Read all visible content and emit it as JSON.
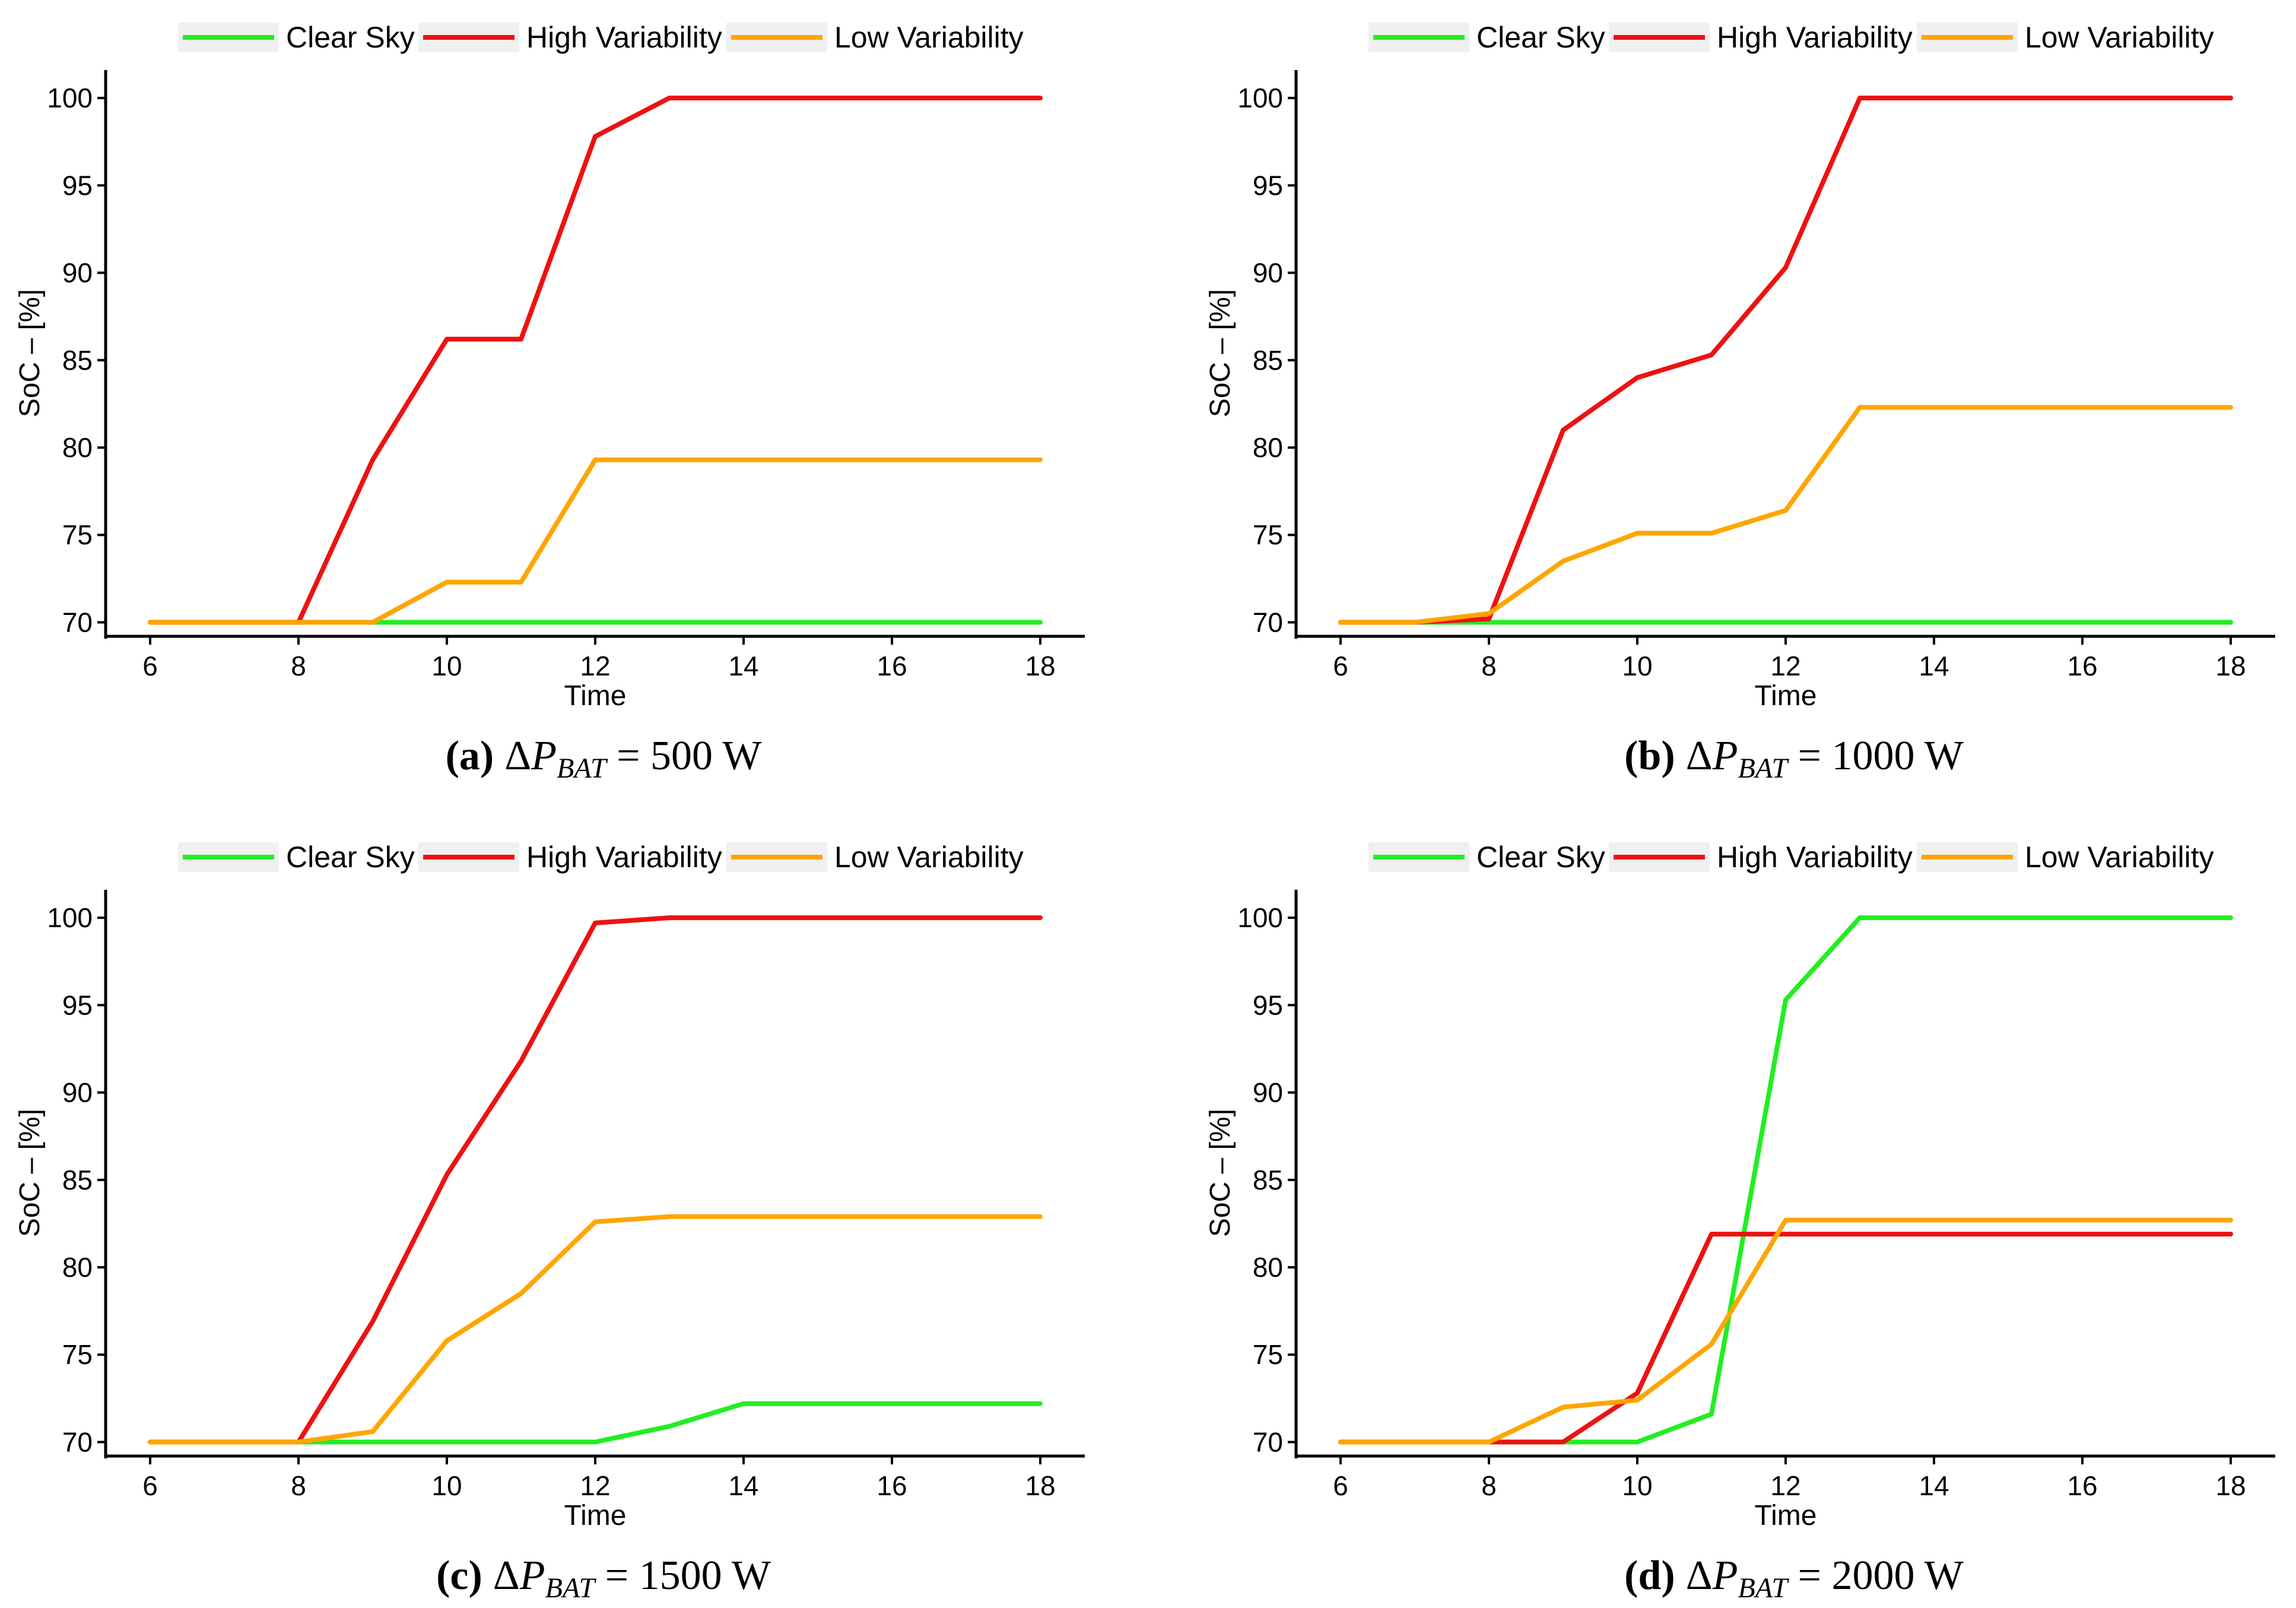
{
  "legend_items": [
    {
      "name": "Clear Sky",
      "color": "#22ee22"
    },
    {
      "name": "High Variability",
      "color": "#ee1111"
    },
    {
      "name": "Low Variability",
      "color": "#ffa500"
    }
  ],
  "legend_swatch_bg": "#f0f0f0",
  "chart_data": [
    {
      "type": "line",
      "xlabel": "Time",
      "ylabel": "SoC – [%]",
      "xlim": [
        5.4,
        18.6
      ],
      "ylim": [
        69.2,
        101.6
      ],
      "xticks": [
        6,
        8,
        10,
        12,
        14,
        16,
        18
      ],
      "yticks": [
        70,
        75,
        80,
        85,
        90,
        95,
        100
      ],
      "grid": false,
      "legend": "top",
      "caption": {
        "label": "(a)",
        "delta": "Δ",
        "var": "P",
        "sub": "BAT",
        "rest": " = 500 W"
      },
      "x": [
        6,
        7,
        8,
        9,
        10,
        11,
        12,
        13,
        14,
        15,
        16,
        17,
        18
      ],
      "series": [
        {
          "name": "Clear Sky",
          "values": [
            70,
            70,
            70,
            70,
            70,
            70,
            70,
            70,
            70,
            70,
            70,
            70,
            70
          ]
        },
        {
          "name": "High Variability",
          "values": [
            70,
            70,
            70,
            79.3,
            86.2,
            86.2,
            97.8,
            100,
            100,
            100,
            100,
            100,
            100
          ]
        },
        {
          "name": "Low Variability",
          "values": [
            70,
            70,
            70,
            70,
            72.3,
            72.3,
            79.3,
            79.3,
            79.3,
            79.3,
            79.3,
            79.3,
            79.3
          ]
        }
      ]
    },
    {
      "type": "line",
      "xlabel": "Time",
      "ylabel": "SoC – [%]",
      "xlim": [
        5.4,
        18.6
      ],
      "ylim": [
        69.2,
        101.6
      ],
      "xticks": [
        6,
        8,
        10,
        12,
        14,
        16,
        18
      ],
      "yticks": [
        70,
        75,
        80,
        85,
        90,
        95,
        100
      ],
      "grid": false,
      "legend": "top",
      "caption": {
        "label": "(b)",
        "delta": "Δ",
        "var": "P",
        "sub": "BAT",
        "rest": " = 1000 W"
      },
      "x": [
        6,
        7,
        8,
        9,
        10,
        11,
        12,
        13,
        14,
        15,
        16,
        17,
        18
      ],
      "series": [
        {
          "name": "Clear Sky",
          "values": [
            70,
            70,
            70,
            70,
            70,
            70,
            70,
            70,
            70,
            70,
            70,
            70,
            70
          ]
        },
        {
          "name": "High Variability",
          "values": [
            70,
            70,
            70.2,
            81,
            84,
            85.3,
            90.3,
            100,
            100,
            100,
            100,
            100,
            100
          ]
        },
        {
          "name": "Low Variability",
          "values": [
            70,
            70,
            70.5,
            73.5,
            75.1,
            75.1,
            76.4,
            82.3,
            82.3,
            82.3,
            82.3,
            82.3,
            82.3
          ]
        }
      ]
    },
    {
      "type": "line",
      "xlabel": "Time",
      "ylabel": "SoC – [%]",
      "xlim": [
        5.4,
        18.6
      ],
      "ylim": [
        69.2,
        101.6
      ],
      "xticks": [
        6,
        8,
        10,
        12,
        14,
        16,
        18
      ],
      "yticks": [
        70,
        75,
        80,
        85,
        90,
        95,
        100
      ],
      "grid": false,
      "legend": "top",
      "caption": {
        "label": "(c)",
        "delta": "Δ",
        "var": "P",
        "sub": "BAT",
        "rest": " = 1500 W"
      },
      "x": [
        6,
        7,
        8,
        9,
        10,
        11,
        12,
        13,
        14,
        15,
        16,
        17,
        18
      ],
      "series": [
        {
          "name": "Clear Sky",
          "values": [
            70,
            70,
            70,
            70,
            70,
            70,
            70,
            70.9,
            72.2,
            72.2,
            72.2,
            72.2,
            72.2
          ]
        },
        {
          "name": "High Variability",
          "values": [
            70,
            70,
            70,
            76.9,
            85.3,
            91.8,
            99.7,
            100,
            100,
            100,
            100,
            100,
            100
          ]
        },
        {
          "name": "Low Variability",
          "values": [
            70,
            70,
            70,
            70.6,
            75.8,
            78.5,
            82.6,
            82.9,
            82.9,
            82.9,
            82.9,
            82.9,
            82.9
          ]
        }
      ]
    },
    {
      "type": "line",
      "xlabel": "Time",
      "ylabel": "SoC – [%]",
      "xlim": [
        5.4,
        18.6
      ],
      "ylim": [
        69.2,
        101.6
      ],
      "xticks": [
        6,
        8,
        10,
        12,
        14,
        16,
        18
      ],
      "yticks": [
        70,
        75,
        80,
        85,
        90,
        95,
        100
      ],
      "grid": false,
      "legend": "top",
      "caption": {
        "label": "(d)",
        "delta": "Δ",
        "var": "P",
        "sub": "BAT",
        "rest": " = 2000 W"
      },
      "x": [
        6,
        7,
        8,
        9,
        10,
        11,
        12,
        13,
        14,
        15,
        16,
        17,
        18
      ],
      "series": [
        {
          "name": "Clear Sky",
          "values": [
            70,
            70,
            70,
            70,
            70,
            71.6,
            95.3,
            100,
            100,
            100,
            100,
            100,
            100
          ]
        },
        {
          "name": "High Variability",
          "values": [
            70,
            70,
            70,
            70,
            72.8,
            81.9,
            81.9,
            81.9,
            81.9,
            81.9,
            81.9,
            81.9,
            81.9
          ]
        },
        {
          "name": "Low Variability",
          "values": [
            70,
            70,
            70,
            72,
            72.4,
            75.6,
            82.7,
            82.7,
            82.7,
            82.7,
            82.7,
            82.7,
            82.7
          ]
        }
      ]
    }
  ]
}
